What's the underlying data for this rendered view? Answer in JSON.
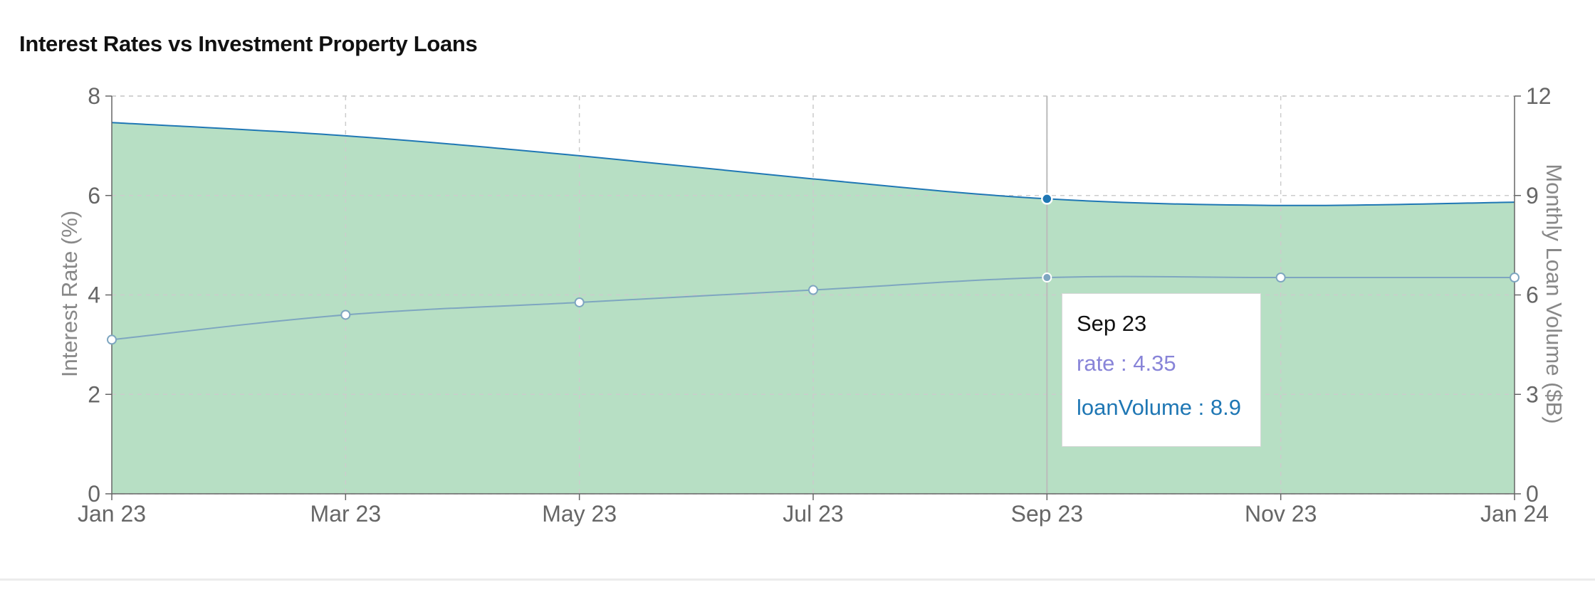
{
  "title": "Interest Rates vs Investment Property Loans",
  "colors": {
    "rate": "#8884d8",
    "loanVolume_stroke": "#1f77b4",
    "loanVolume_fill": "#b7dfc4",
    "rate_line": "#7ea6c0",
    "grid": "#cccccc",
    "axis": "#666666"
  },
  "chart_data": {
    "type": "area",
    "x": [
      "Jan 23",
      "Mar 23",
      "May 23",
      "Jul 23",
      "Sep 23",
      "Nov 23",
      "Jan 24"
    ],
    "series": [
      {
        "name": "rate",
        "axis": "left",
        "render": "line",
        "values": [
          3.1,
          3.6,
          3.85,
          4.1,
          4.35,
          4.35,
          4.35
        ]
      },
      {
        "name": "loanVolume",
        "axis": "right",
        "render": "area",
        "values": [
          11.2,
          10.8,
          10.2,
          9.5,
          8.9,
          8.7,
          8.8
        ]
      }
    ],
    "title": "Interest Rates vs Investment Property Loans",
    "ylabel": "Interest Rate (%)",
    "y2label": "Monthly Loan Volume ($B)",
    "ylim": [
      0,
      8
    ],
    "y2lim": [
      0,
      12
    ],
    "yticks": [
      "0",
      "2",
      "4",
      "6",
      "8"
    ],
    "y2ticks": [
      "0",
      "3",
      "6",
      "9",
      "12"
    ],
    "grid": true,
    "legend": "none"
  },
  "tooltip": {
    "title": "Sep 23",
    "rate_text": "rate : 4.35",
    "loan_text": "loanVolume : 8.9",
    "active_index": 4
  }
}
